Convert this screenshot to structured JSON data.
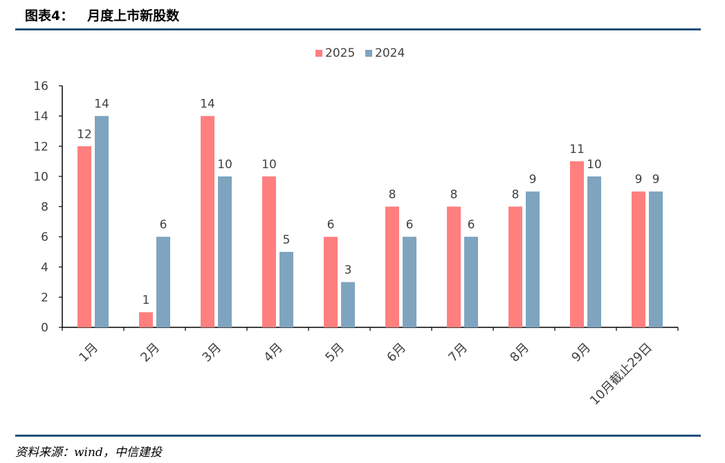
{
  "figure": {
    "title_prefix": "图表4：",
    "title": "月度上市新股数",
    "source": "资料来源：wind，中信建投"
  },
  "colors": {
    "series_2025": "#ff7f7f",
    "series_2024": "#7fa4bf",
    "rule": "#1f4e79",
    "axis": "#000000",
    "text": "#404040"
  },
  "chart_data": {
    "type": "bar",
    "categories": [
      "1月",
      "2月",
      "3月",
      "4月",
      "5月",
      "6月",
      "7月",
      "8月",
      "9月",
      "10月截止29日"
    ],
    "series": [
      {
        "name": "2025",
        "values": [
          12,
          1,
          14,
          10,
          6,
          8,
          8,
          8,
          11,
          9
        ]
      },
      {
        "name": "2024",
        "values": [
          14,
          6,
          10,
          5,
          3,
          6,
          6,
          9,
          10,
          9
        ]
      }
    ],
    "yticks": [
      "0",
      "2",
      "4",
      "6",
      "8",
      "10",
      "12",
      "14",
      "16"
    ],
    "ylim": [
      0,
      16
    ],
    "legend_position": "top-center",
    "grid": false,
    "data_labels": true
  }
}
